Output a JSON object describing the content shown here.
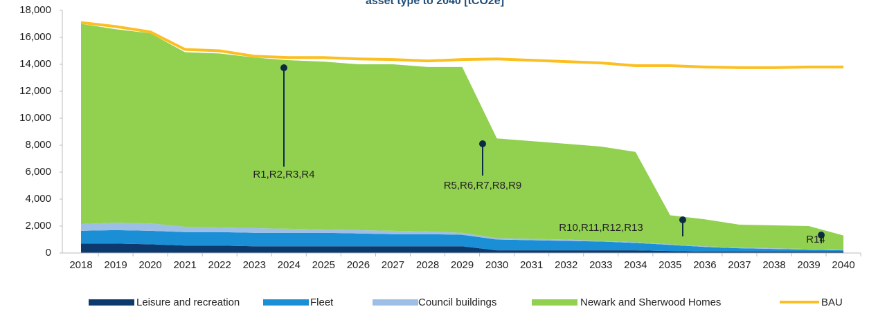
{
  "chart_data": {
    "type": "stacked-area",
    "title": "asset type to 2040 [tCO2e]",
    "categories": [
      "2018",
      "2019",
      "2020",
      "2021",
      "2022",
      "2023",
      "2024",
      "2025",
      "2026",
      "2027",
      "2028",
      "2029",
      "2030",
      "2031",
      "2032",
      "2033",
      "2034",
      "2035",
      "2036",
      "2037",
      "2038",
      "2039",
      "2040"
    ],
    "series": [
      {
        "name": "Leisure and recreation",
        "color": "#0d3a6e",
        "values": [
          700,
          700,
          650,
          550,
          550,
          500,
          500,
          500,
          500,
          500,
          500,
          500,
          200,
          200,
          200,
          200,
          200,
          150,
          100,
          100,
          100,
          100,
          100
        ]
      },
      {
        "name": "Fleet",
        "color": "#1a8fd6",
        "values": [
          950,
          1000,
          1000,
          1000,
          1000,
          1000,
          1000,
          1000,
          950,
          900,
          900,
          850,
          800,
          750,
          700,
          650,
          550,
          450,
          350,
          250,
          200,
          150,
          100
        ]
      },
      {
        "name": "Council buildings",
        "color": "#9dbfe6",
        "values": [
          500,
          550,
          550,
          400,
          350,
          350,
          300,
          250,
          250,
          250,
          200,
          150,
          100,
          100,
          100,
          50,
          50,
          50,
          50,
          50,
          50,
          50,
          50
        ]
      },
      {
        "name": "Newark and Sherwood Homes",
        "color": "#92d050",
        "values": [
          14850,
          14350,
          14100,
          12950,
          12900,
          12650,
          12500,
          12450,
          12300,
          12350,
          12200,
          12300,
          7400,
          7250,
          7100,
          7000,
          6700,
          2150,
          2000,
          1700,
          1700,
          1700,
          1050
        ]
      }
    ],
    "line_series": {
      "name": "BAU",
      "color": "#fbbf22",
      "values": [
        17100,
        16800,
        16400,
        15100,
        15000,
        14600,
        14500,
        14500,
        14400,
        14350,
        14250,
        14350,
        14400,
        14300,
        14200,
        14100,
        13900,
        13900,
        13800,
        13750,
        13750,
        13800,
        13800
      ]
    },
    "annotations": [
      "R1,R2,R3,R4",
      "R5,R6,R7,R8,R9",
      "R10,R11,R12,R13",
      "R14"
    ],
    "ylim": [
      0,
      18000
    ],
    "yticks": [
      0,
      {
        "value": 2000,
        "label": "2,000"
      },
      {
        "value": 4000,
        "label": "4,000"
      },
      {
        "value": 6000,
        "label": "6,000"
      },
      {
        "value": 8000,
        "label": "8,000"
      },
      {
        "value": 10000,
        "label": "10,000"
      },
      {
        "value": 12000,
        "label": "12,000"
      },
      {
        "value": 14000,
        "label": "14,000"
      },
      {
        "value": 16000,
        "label": "16,000"
      },
      {
        "value": 18000,
        "label": "18,000"
      }
    ],
    "legend": "bottom"
  }
}
